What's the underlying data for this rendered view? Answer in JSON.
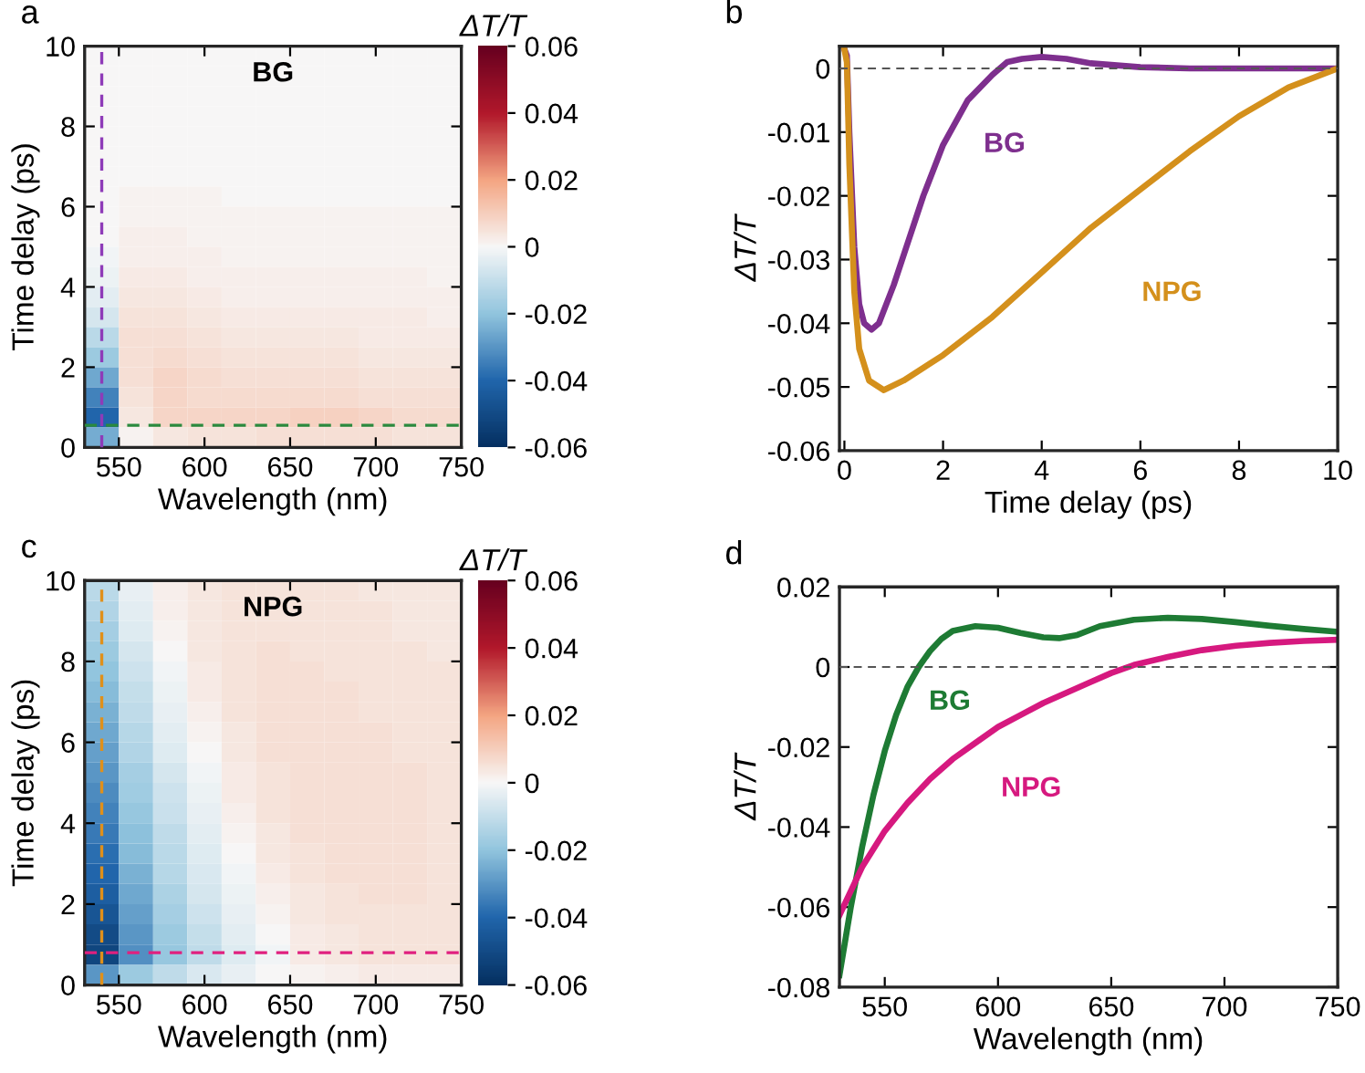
{
  "chart_data": [
    {
      "type": "heatmap",
      "title": "BG",
      "xlabel": "Wavelength (nm)",
      "ylabel": "Time delay (ps)",
      "clabel": "ΔT/T",
      "annotations": [
        "a"
      ],
      "x": [
        540,
        560,
        580,
        600,
        620,
        640,
        660,
        680,
        700,
        720,
        740
      ],
      "y": [
        9.75,
        9.25,
        8.75,
        8.25,
        7.75,
        7.25,
        6.75,
        6.25,
        5.75,
        5.25,
        4.75,
        4.25,
        3.75,
        3.25,
        2.75,
        2.25,
        1.75,
        1.25,
        0.75,
        0.25
      ],
      "cells": [
        [
          0,
          0,
          0,
          0,
          0,
          0,
          0,
          0,
          0,
          0,
          0
        ],
        [
          0,
          0,
          0,
          0,
          0,
          0,
          0,
          0,
          0,
          0,
          0
        ],
        [
          0,
          0,
          0,
          0,
          0,
          0,
          0,
          0,
          0,
          0,
          0
        ],
        [
          0,
          0,
          0,
          0,
          0,
          0,
          0,
          0,
          0,
          0,
          0
        ],
        [
          0,
          0,
          0,
          0,
          0,
          0,
          0,
          0,
          0,
          0,
          0
        ],
        [
          0,
          0,
          0,
          0,
          0,
          0,
          0,
          0,
          0,
          0,
          0
        ],
        [
          0,
          0,
          0,
          0,
          0,
          0,
          0,
          0,
          0,
          0,
          0
        ],
        [
          0,
          0.001,
          0.001,
          0.001,
          0,
          0,
          0,
          0,
          0,
          0,
          0
        ],
        [
          0,
          0.001,
          0.001,
          0.001,
          0.001,
          0.001,
          0.001,
          0.001,
          0.001,
          0.001,
          0.001
        ],
        [
          0,
          0.002,
          0.002,
          0.001,
          0.001,
          0.001,
          0.001,
          0.001,
          0.001,
          0.001,
          0.001
        ],
        [
          -0.001,
          0.002,
          0.002,
          0.002,
          0.001,
          0.001,
          0.001,
          0.001,
          0.001,
          0.001,
          0.001
        ],
        [
          -0.002,
          0.003,
          0.003,
          0.002,
          0.002,
          0.002,
          0.002,
          0.002,
          0.002,
          0.002,
          0.001
        ],
        [
          -0.004,
          0.004,
          0.004,
          0.003,
          0.002,
          0.002,
          0.002,
          0.002,
          0.002,
          0.002,
          0.002
        ],
        [
          -0.007,
          0.005,
          0.005,
          0.004,
          0.003,
          0.003,
          0.003,
          0.003,
          0.003,
          0.003,
          0.002
        ],
        [
          -0.012,
          0.006,
          0.006,
          0.005,
          0.004,
          0.004,
          0.004,
          0.004,
          0.003,
          0.003,
          0.003
        ],
        [
          -0.018,
          0.006,
          0.007,
          0.006,
          0.005,
          0.005,
          0.005,
          0.005,
          0.004,
          0.004,
          0.004
        ],
        [
          -0.026,
          0.006,
          0.008,
          0.007,
          0.006,
          0.006,
          0.006,
          0.006,
          0.005,
          0.005,
          0.005
        ],
        [
          -0.034,
          0.005,
          0.008,
          0.007,
          0.007,
          0.007,
          0.007,
          0.007,
          0.006,
          0.006,
          0.006
        ],
        [
          -0.04,
          0.004,
          0.008,
          0.008,
          0.008,
          0.008,
          0.009,
          0.009,
          0.008,
          0.007,
          0.007
        ],
        [
          -0.025,
          0.001,
          0.004,
          0.005,
          0.005,
          0.006,
          0.006,
          0.006,
          0.006,
          0.005,
          0.005
        ]
      ],
      "xlim": [
        530,
        750
      ],
      "xticks": [
        550,
        600,
        650,
        700,
        750
      ],
      "ylim": [
        0,
        10
      ],
      "yticks": [
        0,
        2,
        4,
        6,
        8,
        10
      ],
      "clim": [
        -0.06,
        0.06
      ],
      "cticks": [
        -0.06,
        -0.04,
        -0.02,
        0,
        0.02,
        0.04,
        0.06
      ],
      "ref_lines": [
        {
          "axis": "x",
          "value": 540,
          "color": "#8e3bb8",
          "line_style": "dashed"
        },
        {
          "axis": "y",
          "value": 0.55,
          "color": "#2a8a3e",
          "line_style": "dashed"
        }
      ]
    },
    {
      "type": "line",
      "xlabel": "Time delay (ps)",
      "ylabel": "ΔT/T",
      "annotations": [
        "b"
      ],
      "xlim": [
        -0.1,
        10
      ],
      "xticks": [
        0,
        2,
        4,
        6,
        8,
        10
      ],
      "ylim": [
        -0.06,
        0.0035
      ],
      "yticks": [
        -0.06,
        -0.05,
        -0.04,
        -0.03,
        -0.02,
        -0.01,
        0
      ],
      "line_style": "solid",
      "marker": "none",
      "grid": false,
      "legend": false,
      "ref_lines": [
        {
          "axis": "y",
          "value": 0,
          "color": "#555555",
          "line_style": "dashed"
        }
      ],
      "series": [
        {
          "name": "BG",
          "color": "#7e2f8e",
          "x": [
            0,
            0.05,
            0.1,
            0.2,
            0.3,
            0.4,
            0.55,
            0.7,
            1.0,
            1.3,
            1.6,
            2.0,
            2.5,
            3.0,
            3.3,
            3.6,
            4,
            4.5,
            5,
            6,
            7,
            8,
            9,
            10
          ],
          "values": [
            0.003,
            0.002,
            -0.01,
            -0.028,
            -0.037,
            -0.04,
            -0.041,
            -0.04,
            -0.034,
            -0.027,
            -0.02,
            -0.012,
            -0.005,
            -0.001,
            0.001,
            0.0015,
            0.0018,
            0.0015,
            0.0008,
            0.0002,
            0,
            0,
            0,
            0
          ]
        },
        {
          "name": "NPG",
          "color": "#d4901c",
          "x": [
            0,
            0.05,
            0.1,
            0.2,
            0.3,
            0.5,
            0.8,
            1.2,
            2,
            3,
            4,
            5,
            6,
            7,
            8,
            9,
            10
          ],
          "values": [
            0.003,
            0.001,
            -0.015,
            -0.035,
            -0.044,
            -0.049,
            -0.0505,
            -0.049,
            -0.045,
            -0.039,
            -0.032,
            -0.025,
            -0.019,
            -0.013,
            -0.0075,
            -0.003,
            0
          ]
        }
      ]
    },
    {
      "type": "heatmap",
      "title": "NPG",
      "xlabel": "Wavelength (nm)",
      "ylabel": "Time delay (ps)",
      "clabel": "ΔT/T",
      "annotations": [
        "c"
      ],
      "x": [
        540,
        560,
        580,
        600,
        620,
        640,
        660,
        680,
        700,
        720,
        740
      ],
      "y": [
        9.75,
        9.25,
        8.75,
        8.25,
        7.75,
        7.25,
        6.75,
        6.25,
        5.75,
        5.25,
        4.75,
        4.25,
        3.75,
        3.25,
        2.75,
        2.25,
        1.75,
        1.25,
        0.75,
        0.25
      ],
      "cells": [
        [
          -0.012,
          -0.003,
          0.002,
          0.004,
          0.005,
          0.005,
          0.005,
          0.005,
          0.004,
          0.004,
          0.004
        ],
        [
          -0.014,
          -0.004,
          0.002,
          0.004,
          0.005,
          0.005,
          0.005,
          0.005,
          0.005,
          0.004,
          0.004
        ],
        [
          -0.016,
          -0.005,
          0.001,
          0.004,
          0.005,
          0.005,
          0.005,
          0.005,
          0.005,
          0.004,
          0.004
        ],
        [
          -0.018,
          -0.007,
          0,
          0.004,
          0.005,
          0.006,
          0.005,
          0.005,
          0.005,
          0.005,
          0.004
        ],
        [
          -0.02,
          -0.008,
          -0.001,
          0.003,
          0.005,
          0.006,
          0.006,
          0.005,
          0.005,
          0.005,
          0.005
        ],
        [
          -0.022,
          -0.01,
          -0.002,
          0.003,
          0.005,
          0.006,
          0.006,
          0.006,
          0.005,
          0.005,
          0.005
        ],
        [
          -0.024,
          -0.011,
          -0.003,
          0.002,
          0.005,
          0.006,
          0.006,
          0.006,
          0.005,
          0.005,
          0.005
        ],
        [
          -0.026,
          -0.013,
          -0.004,
          0.001,
          0.004,
          0.006,
          0.006,
          0.006,
          0.006,
          0.005,
          0.005
        ],
        [
          -0.028,
          -0.014,
          -0.005,
          0,
          0.004,
          0.006,
          0.006,
          0.006,
          0.006,
          0.005,
          0.005
        ],
        [
          -0.03,
          -0.016,
          -0.007,
          -0.001,
          0.003,
          0.005,
          0.006,
          0.006,
          0.006,
          0.006,
          0.005
        ],
        [
          -0.032,
          -0.017,
          -0.008,
          -0.002,
          0.003,
          0.005,
          0.006,
          0.006,
          0.006,
          0.006,
          0.005
        ],
        [
          -0.034,
          -0.019,
          -0.009,
          -0.003,
          0.002,
          0.005,
          0.006,
          0.006,
          0.006,
          0.006,
          0.005
        ],
        [
          -0.036,
          -0.021,
          -0.011,
          -0.004,
          0.001,
          0.004,
          0.006,
          0.006,
          0.006,
          0.006,
          0.005
        ],
        [
          -0.038,
          -0.022,
          -0.012,
          -0.005,
          0,
          0.004,
          0.005,
          0.006,
          0.006,
          0.006,
          0.005
        ],
        [
          -0.04,
          -0.024,
          -0.013,
          -0.006,
          -0.001,
          0.003,
          0.005,
          0.006,
          0.006,
          0.006,
          0.005
        ],
        [
          -0.043,
          -0.026,
          -0.015,
          -0.007,
          -0.002,
          0.002,
          0.004,
          0.005,
          0.006,
          0.006,
          0.005
        ],
        [
          -0.046,
          -0.028,
          -0.016,
          -0.008,
          -0.003,
          0.001,
          0.004,
          0.005,
          0.005,
          0.005,
          0.005
        ],
        [
          -0.05,
          -0.03,
          -0.018,
          -0.01,
          -0.004,
          0,
          0.003,
          0.004,
          0.005,
          0.005,
          0.005
        ],
        [
          -0.052,
          -0.031,
          -0.019,
          -0.011,
          -0.005,
          -0.001,
          0.003,
          0.004,
          0.005,
          0.005,
          0.005
        ],
        [
          -0.03,
          -0.018,
          -0.011,
          -0.006,
          -0.003,
          0,
          0.001,
          0.002,
          0.003,
          0.003,
          0.003
        ]
      ],
      "xlim": [
        530,
        750
      ],
      "xticks": [
        550,
        600,
        650,
        700,
        750
      ],
      "ylim": [
        0,
        10
      ],
      "yticks": [
        0,
        2,
        4,
        6,
        8,
        10
      ],
      "clim": [
        -0.06,
        0.06
      ],
      "cticks": [
        -0.06,
        -0.04,
        -0.02,
        0,
        0.02,
        0.04,
        0.06
      ],
      "ref_lines": [
        {
          "axis": "x",
          "value": 540,
          "color": "#e0901a",
          "line_style": "dashed"
        },
        {
          "axis": "y",
          "value": 0.8,
          "color": "#e0207f",
          "line_style": "dashed"
        }
      ]
    },
    {
      "type": "line",
      "xlabel": "Wavelength (nm)",
      "ylabel": "ΔT/T",
      "annotations": [
        "d"
      ],
      "xlim": [
        530,
        750
      ],
      "xticks": [
        550,
        600,
        650,
        700,
        750
      ],
      "ylim": [
        -0.08,
        0.02
      ],
      "yticks": [
        -0.08,
        -0.06,
        -0.04,
        -0.02,
        0,
        0.02
      ],
      "line_style": "solid",
      "marker": "none",
      "grid": false,
      "legend": false,
      "ref_lines": [
        {
          "axis": "y",
          "value": 0,
          "color": "#555555",
          "line_style": "dashed"
        }
      ],
      "series": [
        {
          "name": "BG",
          "color": "#1e7b34",
          "x": [
            530,
            535,
            540,
            545,
            550,
            555,
            560,
            565,
            570,
            575,
            580,
            590,
            600,
            610,
            620,
            627,
            635,
            645,
            660,
            675,
            690,
            705,
            720,
            735,
            750
          ],
          "values": [
            -0.077,
            -0.06,
            -0.045,
            -0.032,
            -0.021,
            -0.012,
            -0.005,
            0,
            0.004,
            0.007,
            0.009,
            0.0102,
            0.0098,
            0.0085,
            0.0074,
            0.0072,
            0.008,
            0.0102,
            0.0118,
            0.0123,
            0.012,
            0.0112,
            0.0103,
            0.0095,
            0.0088
          ]
        },
        {
          "name": "NPG",
          "color": "#d6197f",
          "x": [
            530,
            535,
            540,
            550,
            560,
            570,
            580,
            590,
            600,
            610,
            620,
            630,
            640,
            650,
            660,
            675,
            690,
            705,
            720,
            735,
            750
          ],
          "values": [
            -0.062,
            -0.056,
            -0.05,
            -0.041,
            -0.034,
            -0.028,
            -0.023,
            -0.019,
            -0.015,
            -0.012,
            -0.009,
            -0.0065,
            -0.004,
            -0.0015,
            0.0005,
            0.0025,
            0.0042,
            0.0053,
            0.006,
            0.0065,
            0.0068
          ]
        }
      ]
    }
  ]
}
